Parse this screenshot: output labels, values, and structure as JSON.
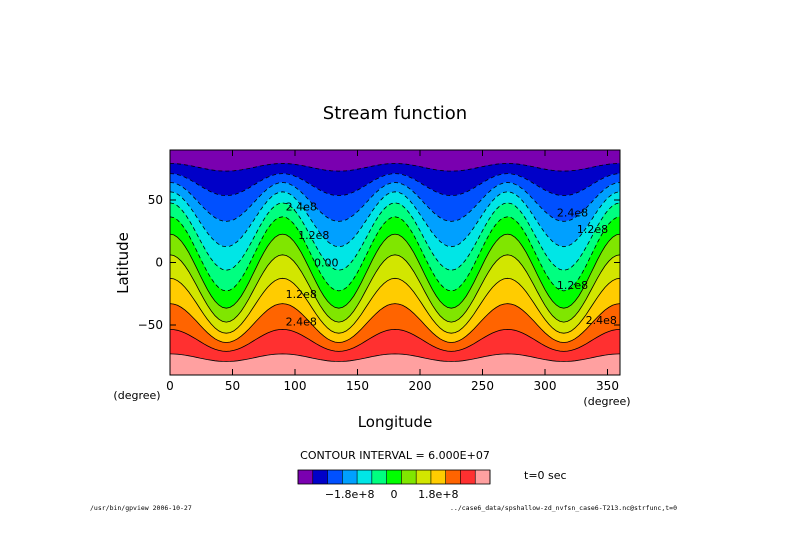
{
  "chart_data": {
    "type": "heatmap",
    "title": "Stream function",
    "xlabel": "Longitude",
    "ylabel": "Latitude",
    "x_unit": "(degree)",
    "y_unit": "(degree)",
    "xlim": [
      0,
      360
    ],
    "ylim": [
      -90,
      90
    ],
    "x_ticks": [
      0,
      50,
      100,
      150,
      200,
      250,
      300,
      350
    ],
    "y_ticks": [
      -50,
      0,
      50
    ],
    "contour_interval_label": "CONTOUR INTERVAL = 6.000E+07",
    "contour_interval": 60000000,
    "zonal_wavenumber": 4,
    "contour_labels": [
      {
        "text": "2.4e8",
        "lon": 105,
        "lat": 45
      },
      {
        "text": "1.2e8",
        "lon": 115,
        "lat": 22
      },
      {
        "text": "0.00",
        "lon": 125,
        "lat": 0
      },
      {
        "text": "1.2e8",
        "lon": 105,
        "lat": -25
      },
      {
        "text": "2.4e8",
        "lon": 105,
        "lat": -47
      },
      {
        "text": "2.4e8",
        "lon": 322,
        "lat": 40
      },
      {
        "text": "1.2e8",
        "lon": 338,
        "lat": 27
      },
      {
        "text": "1.2e8",
        "lon": 322,
        "lat": -18
      },
      {
        "text": "2.4e8",
        "lon": 345,
        "lat": -46
      }
    ],
    "colorbar": {
      "colors": [
        "#7a00b0",
        "#0000c8",
        "#0050ff",
        "#00a0ff",
        "#00e6e6",
        "#00ff80",
        "#00ff00",
        "#80e600",
        "#d2e600",
        "#ffcc00",
        "#ff6400",
        "#ff3030",
        "#ffa0a0"
      ],
      "tick_labels": [
        "−1.8e+8",
        "0",
        "1.8e+8"
      ]
    },
    "time_label": "t=0 sec"
  },
  "footer": {
    "left": "/usr/bin/gpview  2006-10-27",
    "right": "../case6_data/spshallow-zd_nvfsn_case6-T213.nc@strfunc,t=0"
  }
}
